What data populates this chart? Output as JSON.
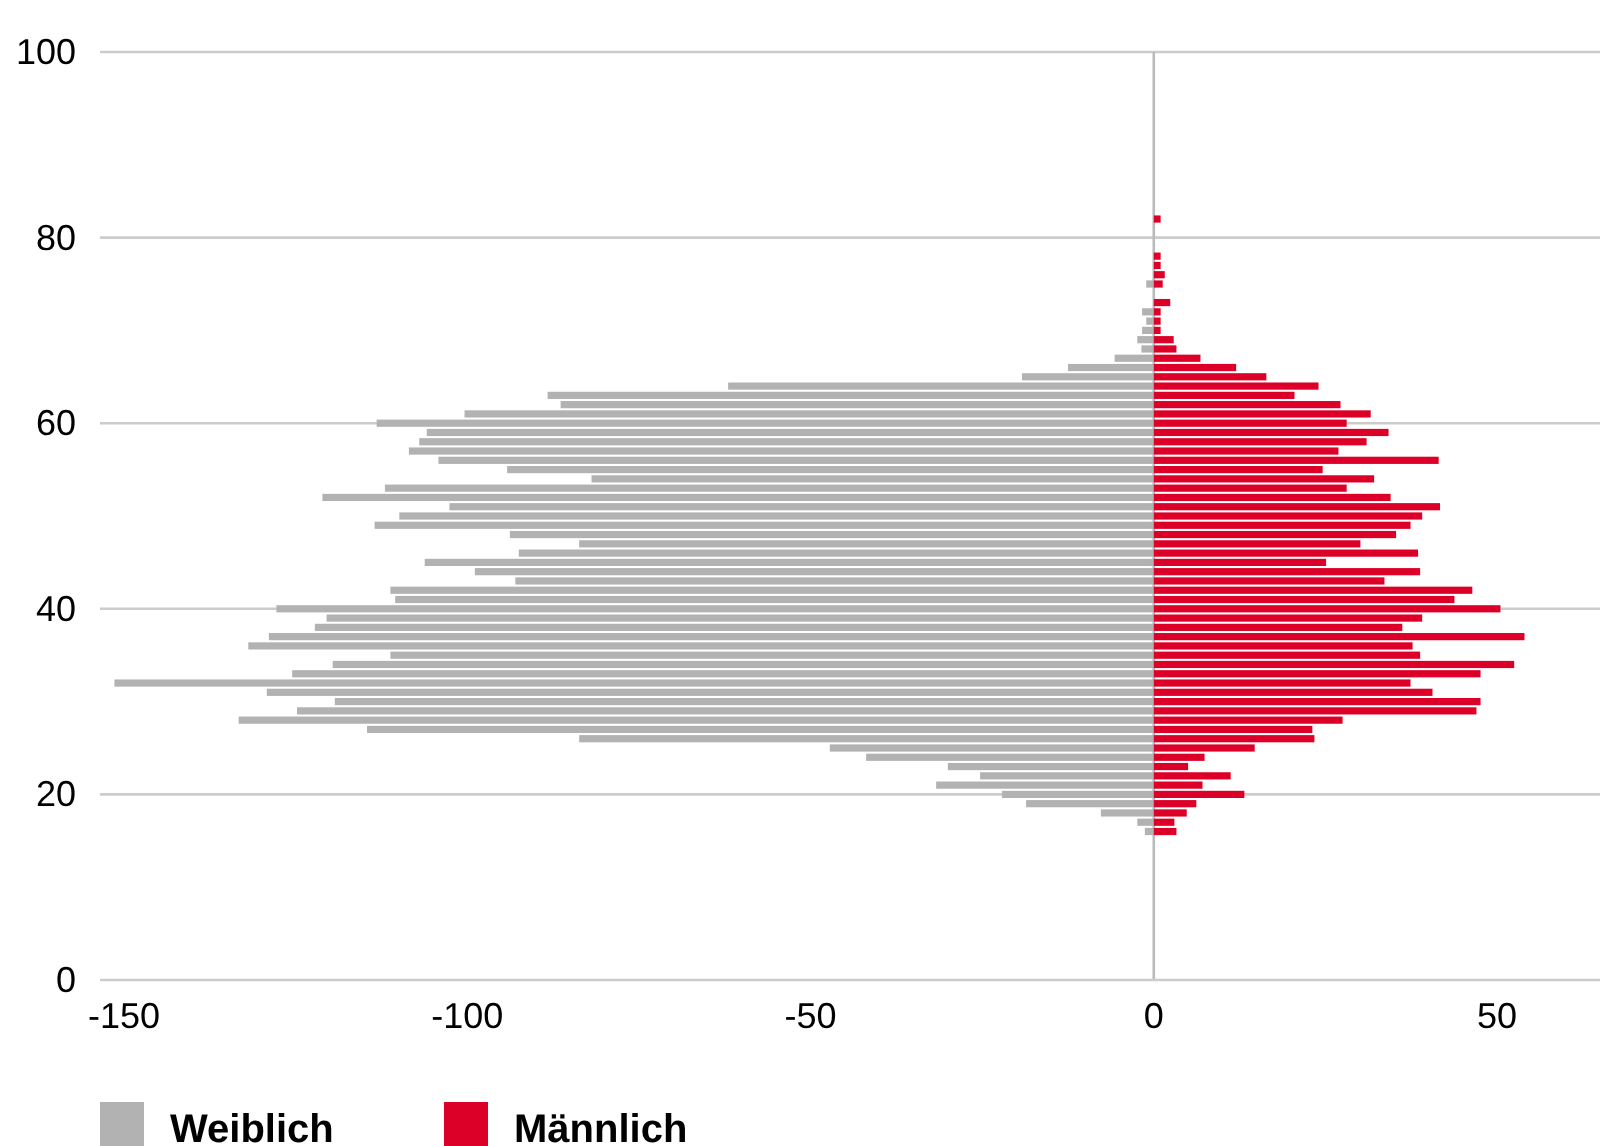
{
  "chart_data": {
    "type": "bar",
    "orientation": "horizontal",
    "categories": [
      "100",
      null,
      null,
      null,
      null,
      null,
      null,
      null,
      null,
      null,
      null,
      null,
      null,
      null,
      null,
      null,
      null,
      null,
      null,
      null,
      "80",
      null,
      null,
      null,
      null,
      null,
      null,
      null,
      null,
      null,
      null,
      null,
      null,
      null,
      null,
      null,
      null,
      null,
      null,
      null,
      "60",
      null,
      null,
      null,
      null,
      null,
      null,
      null,
      null,
      null,
      null,
      null,
      null,
      null,
      null,
      null,
      null,
      null,
      null,
      null,
      "40",
      null,
      null,
      null,
      null,
      null,
      null,
      null,
      null,
      null,
      null,
      null,
      null,
      null,
      null,
      null,
      null,
      null,
      null,
      null,
      "20",
      null,
      null,
      null,
      null,
      null,
      null,
      null,
      null,
      null,
      null,
      null,
      null,
      null,
      null,
      null,
      null,
      null,
      null,
      null,
      "0"
    ],
    "series": [
      {
        "name": "Weiblich",
        "color": "#b2b2b2",
        "values": [
          null,
          null,
          null,
          null,
          null,
          null,
          null,
          null,
          null,
          null,
          null,
          null,
          null,
          null,
          null,
          null,
          null,
          null,
          null,
          null,
          null,
          null,
          null,
          null,
          null,
          -1.1,
          null,
          null,
          -1.7,
          -1.1,
          -1.7,
          -2.4,
          -1.8,
          -5.7,
          -12.5,
          -19.2,
          -62,
          -88.3,
          -86.4,
          -100.4,
          -113.2,
          -105.9,
          -107,
          -108.5,
          -104.2,
          -94.2,
          -81.9,
          -112,
          -121.1,
          -102.6,
          -109.9,
          -113.5,
          -93.8,
          -83.7,
          -92.5,
          -106.2,
          -98.9,
          -93,
          -111.2,
          -110.5,
          -127.8,
          -120.5,
          -122.2,
          -128.9,
          -131.9,
          -111.2,
          -119.6,
          -125.5,
          -151.4,
          -129.2,
          -119.3,
          -124.8,
          -133.3,
          -114.6,
          -83.7,
          -47.2,
          -41.9,
          -30,
          -25.3,
          -31.7,
          -22.1,
          -18.6,
          -7.7,
          -2.4,
          -1.3,
          null,
          null,
          null,
          null,
          null,
          null,
          null,
          null,
          null,
          null,
          null,
          null,
          null,
          null,
          null,
          null
        ]
      },
      {
        "name": "Männlich",
        "color": "#dc0028",
        "values": [
          null,
          null,
          null,
          null,
          null,
          null,
          null,
          null,
          null,
          null,
          null,
          null,
          null,
          null,
          null,
          null,
          null,
          null,
          1,
          null,
          null,
          null,
          1,
          1,
          1.6,
          1.3,
          null,
          2.4,
          1,
          1,
          1,
          2.9,
          3.3,
          6.8,
          12,
          16.4,
          24,
          20.5,
          27.2,
          31.6,
          28.1,
          34.2,
          31,
          26.9,
          41.5,
          24.6,
          32.1,
          28.1,
          34.5,
          41.7,
          39.1,
          37.4,
          35.3,
          30.1,
          38.5,
          25.1,
          38.8,
          33.6,
          46.4,
          43.8,
          50.5,
          39.1,
          36.2,
          54,
          37.7,
          38.8,
          52.5,
          47.6,
          37.4,
          40.6,
          47.6,
          47,
          27.5,
          23.1,
          23.4,
          14.7,
          7.4,
          5,
          11.2,
          7.1,
          13.2,
          6.2,
          4.8,
          3,
          3.3,
          null,
          null,
          null,
          null,
          null,
          null,
          null,
          null,
          null,
          null,
          null,
          null,
          null,
          null,
          null,
          null
        ]
      }
    ],
    "xlim": [
      -153.5,
      65
    ],
    "xticks": [
      -150,
      -100,
      -50,
      0,
      50
    ],
    "grid": "y",
    "legend": "bottom",
    "stacked": true,
    "ref_lines": [
      {
        "axis": "x",
        "value": 0
      }
    ]
  }
}
